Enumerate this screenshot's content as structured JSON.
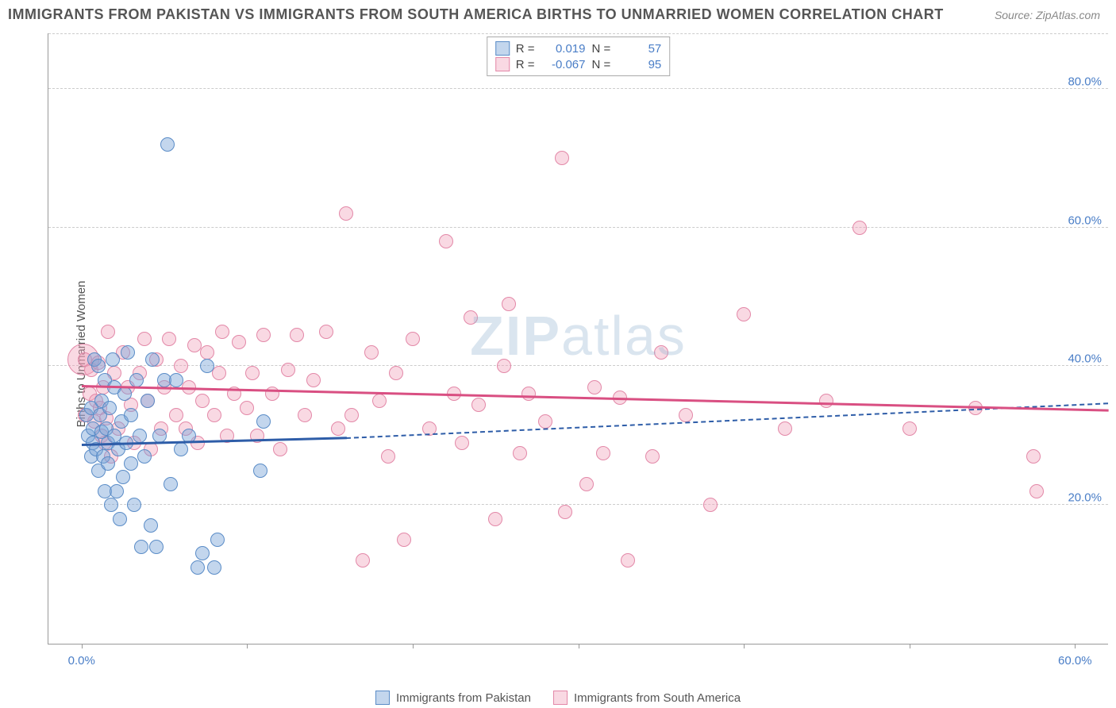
{
  "header": {
    "title": "IMMIGRANTS FROM PAKISTAN VS IMMIGRANTS FROM SOUTH AMERICA BIRTHS TO UNMARRIED WOMEN CORRELATION CHART",
    "source": "Source: ZipAtlas.com"
  },
  "chart": {
    "type": "scatter",
    "yaxis_title": "Births to Unmarried Women",
    "background_color": "#ffffff",
    "grid_color": "#cccccc",
    "axis_line_color": "#999999",
    "tick_label_color": "#4a7ec7",
    "tick_label_fontsize": 15,
    "xlim": [
      -2,
      62
    ],
    "ylim": [
      0,
      88
    ],
    "x_ticks": [
      0,
      10,
      20,
      30,
      40,
      50,
      60
    ],
    "x_tick_labels": {
      "0": "0.0%",
      "60": "60.0%"
    },
    "y_gridlines": [
      20,
      40,
      60,
      80
    ],
    "y_tick_labels": {
      "20": "20.0%",
      "40": "40.0%",
      "60": "60.0%",
      "80": "80.0%"
    },
    "watermark": {
      "text_bold": "ZIP",
      "text_light": "atlas",
      "color": "rgba(150,180,210,0.35)"
    },
    "series": [
      {
        "id": "pakistan",
        "label": "Immigrants from Pakistan",
        "fill_color": "rgba(122,165,216,0.45)",
        "stroke_color": "#5a8cc7",
        "marker_radius": 9,
        "marker_stroke_width": 1.2,
        "trend": {
          "x1": 0,
          "y1": 28.5,
          "x2": 16,
          "y2": 29.5,
          "color": "#2e5da8",
          "width": 2.5,
          "style": "solid",
          "ext_x2": 62,
          "ext_y2": 34.5,
          "ext_style": "dashed"
        },
        "stats": {
          "R": "0.019",
          "N": "57"
        },
        "points": [
          [
            0.3,
            33
          ],
          [
            0.4,
            30
          ],
          [
            0.6,
            27
          ],
          [
            0.6,
            34
          ],
          [
            0.7,
            31
          ],
          [
            0.7,
            29
          ],
          [
            0.8,
            41
          ],
          [
            0.9,
            28
          ],
          [
            1.0,
            40
          ],
          [
            1.0,
            25
          ],
          [
            1.1,
            33
          ],
          [
            1.2,
            30.5
          ],
          [
            1.2,
            35
          ],
          [
            1.3,
            27
          ],
          [
            1.4,
            22
          ],
          [
            1.4,
            38
          ],
          [
            1.5,
            31
          ],
          [
            1.6,
            29
          ],
          [
            1.6,
            26
          ],
          [
            1.7,
            34
          ],
          [
            1.8,
            20
          ],
          [
            1.9,
            41
          ],
          [
            2.0,
            37
          ],
          [
            2.0,
            30
          ],
          [
            2.1,
            22
          ],
          [
            2.2,
            28
          ],
          [
            2.3,
            18
          ],
          [
            2.4,
            32
          ],
          [
            2.5,
            24
          ],
          [
            2.6,
            36
          ],
          [
            2.7,
            29
          ],
          [
            2.8,
            42
          ],
          [
            3.0,
            26
          ],
          [
            3.0,
            33
          ],
          [
            3.2,
            20
          ],
          [
            3.3,
            38
          ],
          [
            3.5,
            30
          ],
          [
            3.6,
            14
          ],
          [
            3.8,
            27
          ],
          [
            4.0,
            35
          ],
          [
            4.2,
            17
          ],
          [
            4.3,
            41
          ],
          [
            4.5,
            14
          ],
          [
            4.7,
            30
          ],
          [
            5.0,
            38
          ],
          [
            5.2,
            72
          ],
          [
            5.4,
            23
          ],
          [
            5.7,
            38
          ],
          [
            6.0,
            28
          ],
          [
            6.5,
            30
          ],
          [
            7.0,
            11
          ],
          [
            7.3,
            13
          ],
          [
            7.6,
            40
          ],
          [
            8.0,
            11
          ],
          [
            8.2,
            15
          ],
          [
            10.8,
            25
          ],
          [
            11.0,
            32
          ]
        ]
      },
      {
        "id": "south_america",
        "label": "Immigrants from South America",
        "fill_color": "rgba(240,160,185,0.4)",
        "stroke_color": "#e388a8",
        "marker_radius": 9,
        "marker_stroke_width": 1.2,
        "trend": {
          "x1": 0,
          "y1": 37,
          "x2": 62,
          "y2": 33.5,
          "color": "#d94f82",
          "width": 2.5,
          "style": "solid"
        },
        "stats": {
          "R": "-0.067",
          "N": "95"
        },
        "points": [
          [
            0.2,
            41
          ],
          [
            0.2,
            33
          ],
          [
            0.5,
            36
          ],
          [
            0.6,
            39.5
          ],
          [
            0.8,
            32
          ],
          [
            0.9,
            35
          ],
          [
            1.0,
            40.5
          ],
          [
            1.1,
            34
          ],
          [
            1.2,
            30
          ],
          [
            1.3,
            37
          ],
          [
            1.4,
            29
          ],
          [
            1.5,
            32.5
          ],
          [
            1.6,
            45
          ],
          [
            1.8,
            27
          ],
          [
            2.0,
            39
          ],
          [
            2.2,
            31
          ],
          [
            2.5,
            42
          ],
          [
            2.8,
            37
          ],
          [
            3.0,
            34.5
          ],
          [
            3.2,
            29
          ],
          [
            3.5,
            39
          ],
          [
            3.8,
            44
          ],
          [
            4.0,
            35
          ],
          [
            4.2,
            28
          ],
          [
            4.5,
            41
          ],
          [
            4.8,
            31
          ],
          [
            5.0,
            37
          ],
          [
            5.3,
            44
          ],
          [
            5.7,
            33
          ],
          [
            6.0,
            40
          ],
          [
            6.3,
            31
          ],
          [
            6.5,
            37
          ],
          [
            6.8,
            43
          ],
          [
            7.0,
            29
          ],
          [
            7.3,
            35
          ],
          [
            7.6,
            42
          ],
          [
            8.0,
            33
          ],
          [
            8.3,
            39
          ],
          [
            8.5,
            45
          ],
          [
            8.8,
            30
          ],
          [
            9.2,
            36
          ],
          [
            9.5,
            43.5
          ],
          [
            10.0,
            34
          ],
          [
            10.3,
            39
          ],
          [
            10.6,
            30
          ],
          [
            11.0,
            44.5
          ],
          [
            11.5,
            36
          ],
          [
            12.0,
            28
          ],
          [
            12.5,
            39.5
          ],
          [
            13.0,
            44.5
          ],
          [
            13.5,
            33
          ],
          [
            14.0,
            38
          ],
          [
            14.8,
            45
          ],
          [
            15.5,
            31
          ],
          [
            16.0,
            62
          ],
          [
            16.3,
            33
          ],
          [
            17.0,
            12
          ],
          [
            17.5,
            42
          ],
          [
            18.0,
            35
          ],
          [
            18.5,
            27
          ],
          [
            19.0,
            39
          ],
          [
            19.5,
            15
          ],
          [
            20.0,
            44
          ],
          [
            21.0,
            31
          ],
          [
            22.0,
            58
          ],
          [
            22.5,
            36
          ],
          [
            23.0,
            29
          ],
          [
            23.5,
            47
          ],
          [
            24.0,
            34.5
          ],
          [
            25.0,
            18
          ],
          [
            25.5,
            40
          ],
          [
            25.8,
            49
          ],
          [
            26.5,
            27.5
          ],
          [
            27.0,
            36
          ],
          [
            28.0,
            32
          ],
          [
            29.0,
            70
          ],
          [
            29.2,
            19
          ],
          [
            30.5,
            23
          ],
          [
            31.0,
            37
          ],
          [
            31.5,
            27.5
          ],
          [
            32.5,
            35.5
          ],
          [
            33.0,
            12
          ],
          [
            34.5,
            27
          ],
          [
            35.0,
            42
          ],
          [
            36.5,
            33
          ],
          [
            38.0,
            20
          ],
          [
            40.0,
            47.5
          ],
          [
            42.5,
            31
          ],
          [
            45.0,
            35
          ],
          [
            47.0,
            60
          ],
          [
            50.0,
            31
          ],
          [
            54.0,
            34
          ],
          [
            57.5,
            27
          ],
          [
            57.7,
            22
          ]
        ],
        "extra_large_point": {
          "x": 0.1,
          "y": 41,
          "radius": 20
        }
      }
    ],
    "legend_top": {
      "R_label": "R =",
      "N_label": "N ="
    },
    "legend_bottom_swatch_size": 18
  }
}
